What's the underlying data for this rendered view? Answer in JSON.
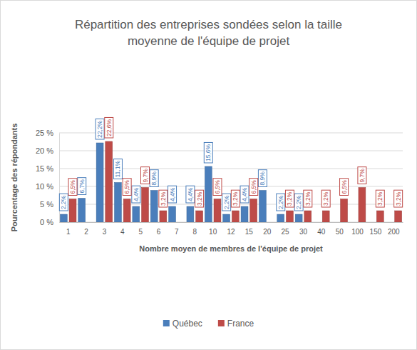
{
  "chart_data": {
    "type": "bar",
    "title": "Répartition des entreprises sondées selon la taille moyenne de l'équipe de projet",
    "x_label": "Nombre moyen de membres de l'équipe de projet",
    "y_label": "Pourcentage des répondants",
    "categories": [
      "1",
      "2",
      "3",
      "4",
      "5",
      "6",
      "7",
      "8",
      "10",
      "12",
      "15",
      "20",
      "25",
      "30",
      "40",
      "50",
      "100",
      "150",
      "200"
    ],
    "series": [
      {
        "name": "Québec",
        "color": "#4a7ebb",
        "values": [
          2.2,
          6.7,
          22.2,
          11.1,
          4.4,
          8.9,
          4.4,
          4.4,
          15.6,
          2.2,
          4.4,
          8.9,
          2.2,
          2.2,
          null,
          null,
          null,
          null,
          null
        ],
        "value_labels": [
          "2,2%",
          "6,7%",
          "22,2%",
          "11,1%",
          "4,4%",
          "8,9%",
          "4,4%",
          "4,4%",
          "15,6%",
          "2,2%",
          "4,4%",
          "8,9%",
          "2,2%",
          "2,2%",
          null,
          null,
          null,
          null,
          null
        ]
      },
      {
        "name": "France",
        "color": "#be4b48",
        "values": [
          6.5,
          null,
          22.6,
          6.5,
          9.7,
          3.2,
          null,
          3.2,
          6.5,
          3.2,
          6.5,
          null,
          3.2,
          3.2,
          3.2,
          6.5,
          9.7,
          3.2,
          3.2
        ],
        "value_labels": [
          "6,5%",
          null,
          "22,6%",
          "6,5%",
          "9,7%",
          "3,2%",
          null,
          "3,2%",
          "6,5%",
          "3,2%",
          "6,5%",
          null,
          "3,2%",
          "3,2%",
          "3,2%",
          "6,5%",
          "9,7%",
          "3,2%",
          "3,2%"
        ]
      }
    ],
    "ylim": [
      0,
      25
    ],
    "yticks": [
      {
        "value": 0,
        "label": "0 %"
      },
      {
        "value": 5,
        "label": "5 %"
      },
      {
        "value": 10,
        "label": "10 %"
      },
      {
        "value": 15,
        "label": "15 %"
      },
      {
        "value": 20,
        "label": "20 %"
      },
      {
        "value": 25,
        "label": "25 %"
      }
    ],
    "grid": true,
    "data_labels": true,
    "legend": "bottom"
  }
}
